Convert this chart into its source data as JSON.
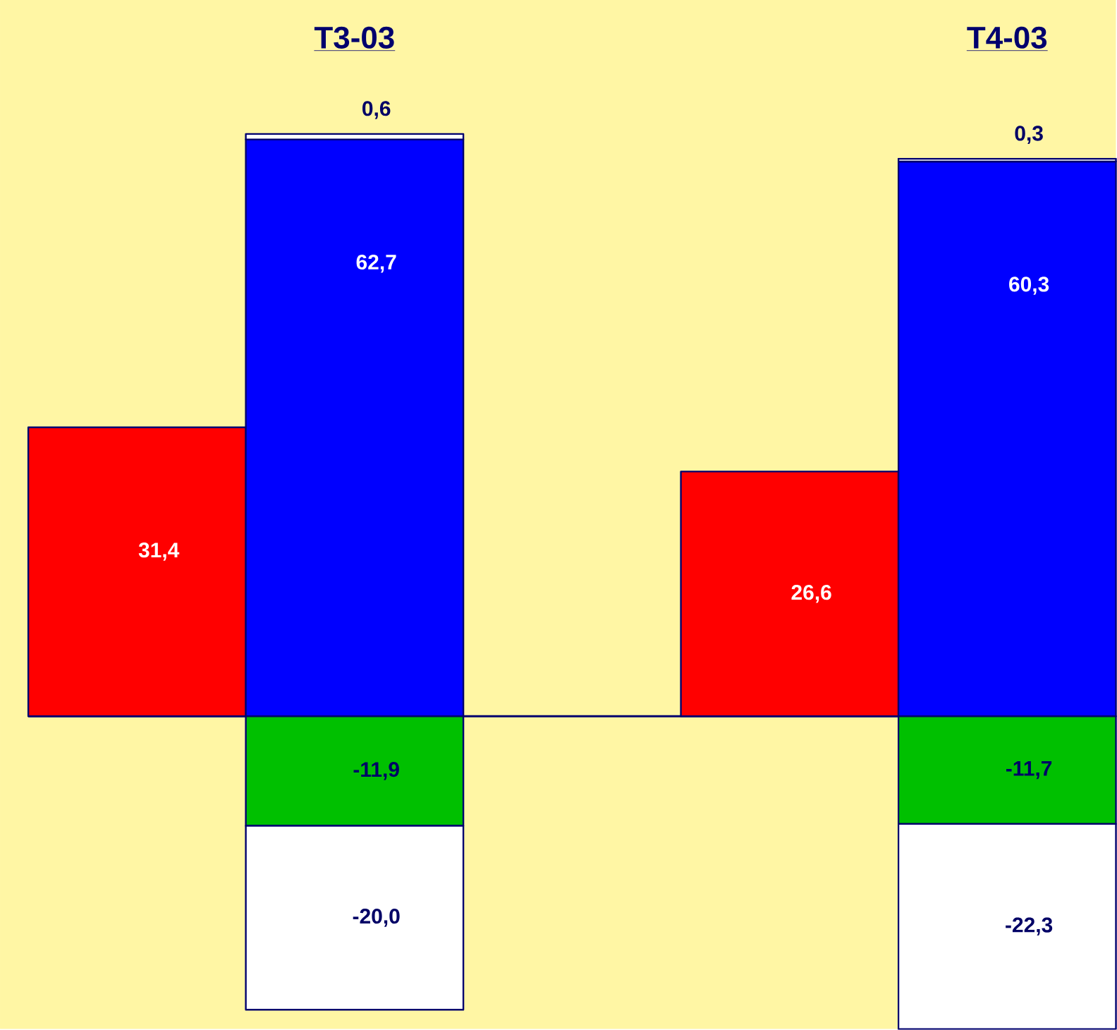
{
  "chart_data": {
    "type": "bar",
    "stacked": true,
    "categories": [
      null,
      "T3-03",
      null,
      null,
      "T4-03"
    ],
    "series": [
      {
        "color": "#ff0000",
        "values": [
          31.4,
          null,
          null,
          26.6,
          null
        ],
        "value_labels": [
          "31,4",
          null,
          null,
          "26,6",
          null
        ]
      },
      {
        "color": "#0000ff",
        "values": [
          null,
          62.7,
          null,
          null,
          60.3
        ],
        "value_labels": [
          null,
          "62,7",
          null,
          null,
          "60,3"
        ]
      },
      {
        "color": "#ffffff",
        "values": [
          null,
          0.6,
          null,
          null,
          0.3
        ],
        "value_labels": [
          null,
          "0,6",
          null,
          null,
          "0,3"
        ]
      },
      {
        "color": "#00c000",
        "values": [
          null,
          -11.9,
          null,
          null,
          -11.7
        ],
        "value_labels": [
          null,
          "-11,9",
          null,
          null,
          "-11,7"
        ]
      },
      {
        "color": "#ffffff",
        "values": [
          null,
          -20.0,
          null,
          null,
          -22.3
        ],
        "value_labels": [
          null,
          "-20,0",
          null,
          null,
          "-22,3"
        ]
      }
    ],
    "ref_lines": [
      {
        "axis": "y",
        "value": 0,
        "color": "#00006e"
      }
    ],
    "tick_labels": "x"
  }
}
